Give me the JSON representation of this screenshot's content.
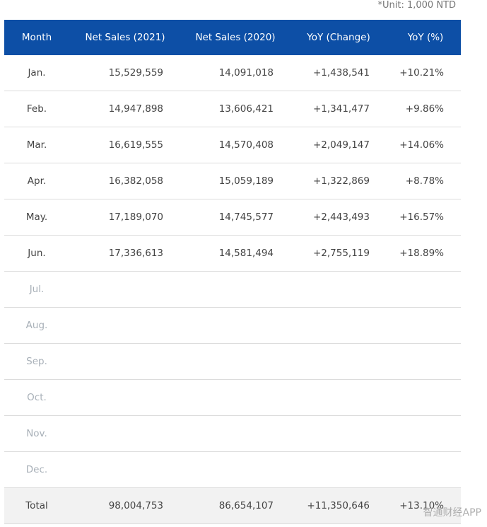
{
  "unit_note": "*Unit: 1,000 NTD",
  "table": {
    "header": [
      "Month",
      "Net Sales (2021)",
      "Net Sales (2020)",
      "YoY (Change)",
      "YoY (%)"
    ],
    "rows": [
      [
        "Jan.",
        "15,529,559",
        "14,091,018",
        "+1,438,541",
        "+10.21%"
      ],
      [
        "Feb.",
        "14,947,898",
        "13,606,421",
        "+1,341,477",
        "+9.86%"
      ],
      [
        "Mar.",
        "16,619,555",
        "14,570,408",
        "+2,049,147",
        "+14.06%"
      ],
      [
        "Apr.",
        "16,382,058",
        "15,059,189",
        "+1,322,869",
        "+8.78%"
      ],
      [
        "May.",
        "17,189,070",
        "14,745,577",
        "+2,443,493",
        "+16.57%"
      ],
      [
        "Jun.",
        "17,336,613",
        "14,581,494",
        "+2,755,119",
        "+18.89%"
      ],
      [
        "Jul."
      ],
      [
        "Aug."
      ],
      [
        "Sep."
      ],
      [
        "Oct."
      ],
      [
        "Nov."
      ],
      [
        "Dec."
      ]
    ],
    "total": [
      "Total",
      "98,004,753",
      "86,654,107",
      "+11,350,646",
      "+13.10%"
    ]
  },
  "watermark": "智通财经APP"
}
